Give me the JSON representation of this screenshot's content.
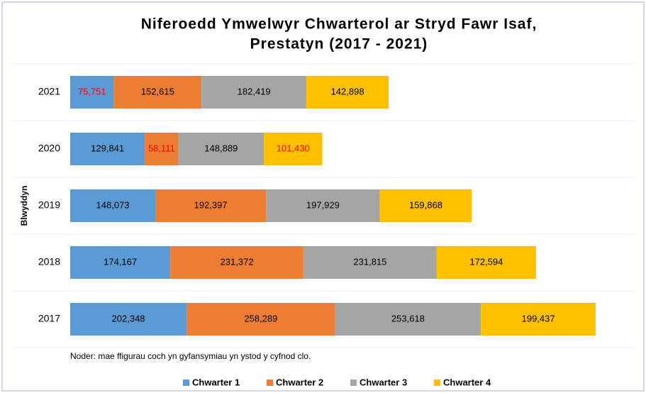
{
  "chart_data": {
    "type": "stacked_barh",
    "title": [
      "Niferoedd Ymwelwyr Chwarterol ar Stryd Fawr Isaf,",
      "Prestatyn (2017 - 2021)"
    ],
    "y_label": "Blwyddyn",
    "note": "Noder: mae ffigurau coch yn gyfansymiau yn ystod y cyfnod clo.",
    "categories": [
      "2021",
      "2020",
      "2019",
      "2018",
      "2017"
    ],
    "xlim": [
      0,
      1000000
    ],
    "legend": "bottom",
    "series": [
      {
        "name": "Chwarter 1",
        "color": "#5b9bd5",
        "values": [
          75751,
          129841,
          148073,
          174167,
          202348
        ],
        "value_labels": [
          "75,751",
          "129,841",
          "148,073",
          "174,167",
          "202,348"
        ],
        "label_colors": [
          "#ff0000",
          "#000000",
          "#000000",
          "#000000",
          "#000000"
        ]
      },
      {
        "name": "Chwarter 2",
        "color": "#ed7d31",
        "values": [
          152615,
          58111,
          192397,
          231372,
          258289
        ],
        "value_labels": [
          "152,615",
          "58,111",
          "192,397",
          "231,372",
          "258,289"
        ],
        "label_colors": [
          "#000000",
          "#ff0000",
          "#000000",
          "#000000",
          "#000000"
        ]
      },
      {
        "name": "Chwarter 3",
        "color": "#a5a5a5",
        "values": [
          182419,
          148889,
          197929,
          231815,
          253618
        ],
        "value_labels": [
          "182,419",
          "148,889",
          "197,929",
          "231,815",
          "253,618"
        ],
        "label_colors": [
          "#000000",
          "#000000",
          "#000000",
          "#000000",
          "#000000"
        ]
      },
      {
        "name": "Chwarter 4",
        "color": "#ffc000",
        "values": [
          142898,
          101430,
          159868,
          172594,
          199437
        ],
        "value_labels": [
          "142,898",
          "101,430",
          "159,868",
          "172,594",
          "199,437"
        ],
        "label_colors": [
          "#000000",
          "#ff0000",
          "#000000",
          "#000000",
          "#000000"
        ]
      }
    ]
  }
}
